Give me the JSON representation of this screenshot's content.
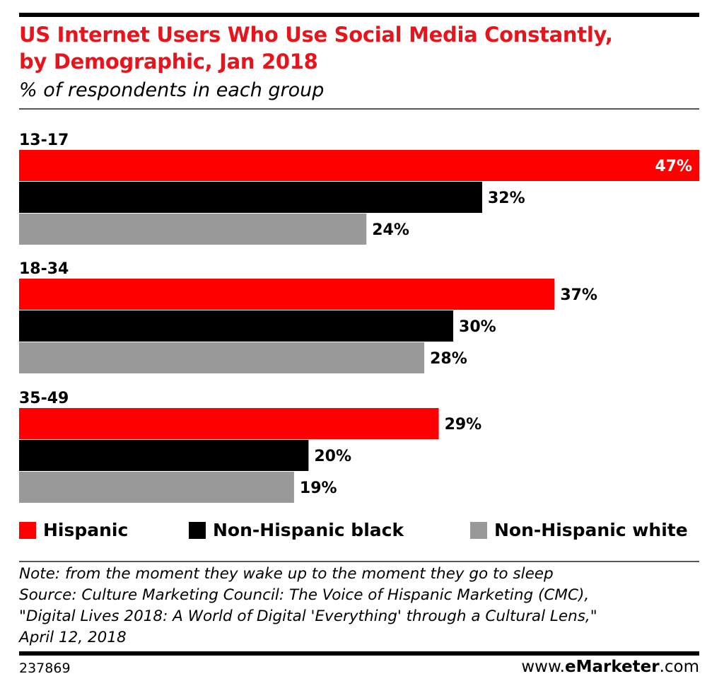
{
  "header": {
    "title_line1": "US Internet Users Who Use Social Media Constantly,",
    "title_line2": "by Demographic, Jan 2018",
    "subtitle": "% of respondents in each group"
  },
  "colors": {
    "title": "#e8141b",
    "Hispanic": "#ff0000",
    "Non-Hispanic black": "#000000",
    "Non-Hispanic white": "#999999"
  },
  "chart_data": {
    "type": "bar",
    "orientation": "horizontal",
    "title": "US Internet Users Who Use Social Media Constantly, by Demographic, Jan 2018",
    "subtitle": "% of respondents in each group",
    "categories": [
      "13-17",
      "18-34",
      "35-49"
    ],
    "series": [
      {
        "name": "Hispanic",
        "color": "#ff0000",
        "values": [
          47,
          37,
          29
        ]
      },
      {
        "name": "Non-Hispanic black",
        "color": "#000000",
        "values": [
          32,
          30,
          20
        ]
      },
      {
        "name": "Non-Hispanic white",
        "color": "#999999",
        "values": [
          24,
          28,
          19
        ]
      }
    ],
    "value_suffix": "%",
    "xlim": [
      0,
      47
    ],
    "grid": false,
    "legend_position": "bottom"
  },
  "legend": {
    "items": [
      "Hispanic",
      "Non-Hispanic black",
      "Non-Hispanic white"
    ]
  },
  "footer": {
    "note_lines": [
      "Note: from the moment they wake up to the moment they go to sleep",
      "Source: Culture Marketing Council: The Voice of Hispanic Marketing (CMC),",
      "\"Digital Lives 2018: A World of Digital 'Everything' through a Cultural Lens,\"",
      "April 12, 2018"
    ],
    "chart_id": "237869",
    "brand_prefix": "www.",
    "brand_name": "eMarketer",
    "brand_suffix": ".com"
  }
}
